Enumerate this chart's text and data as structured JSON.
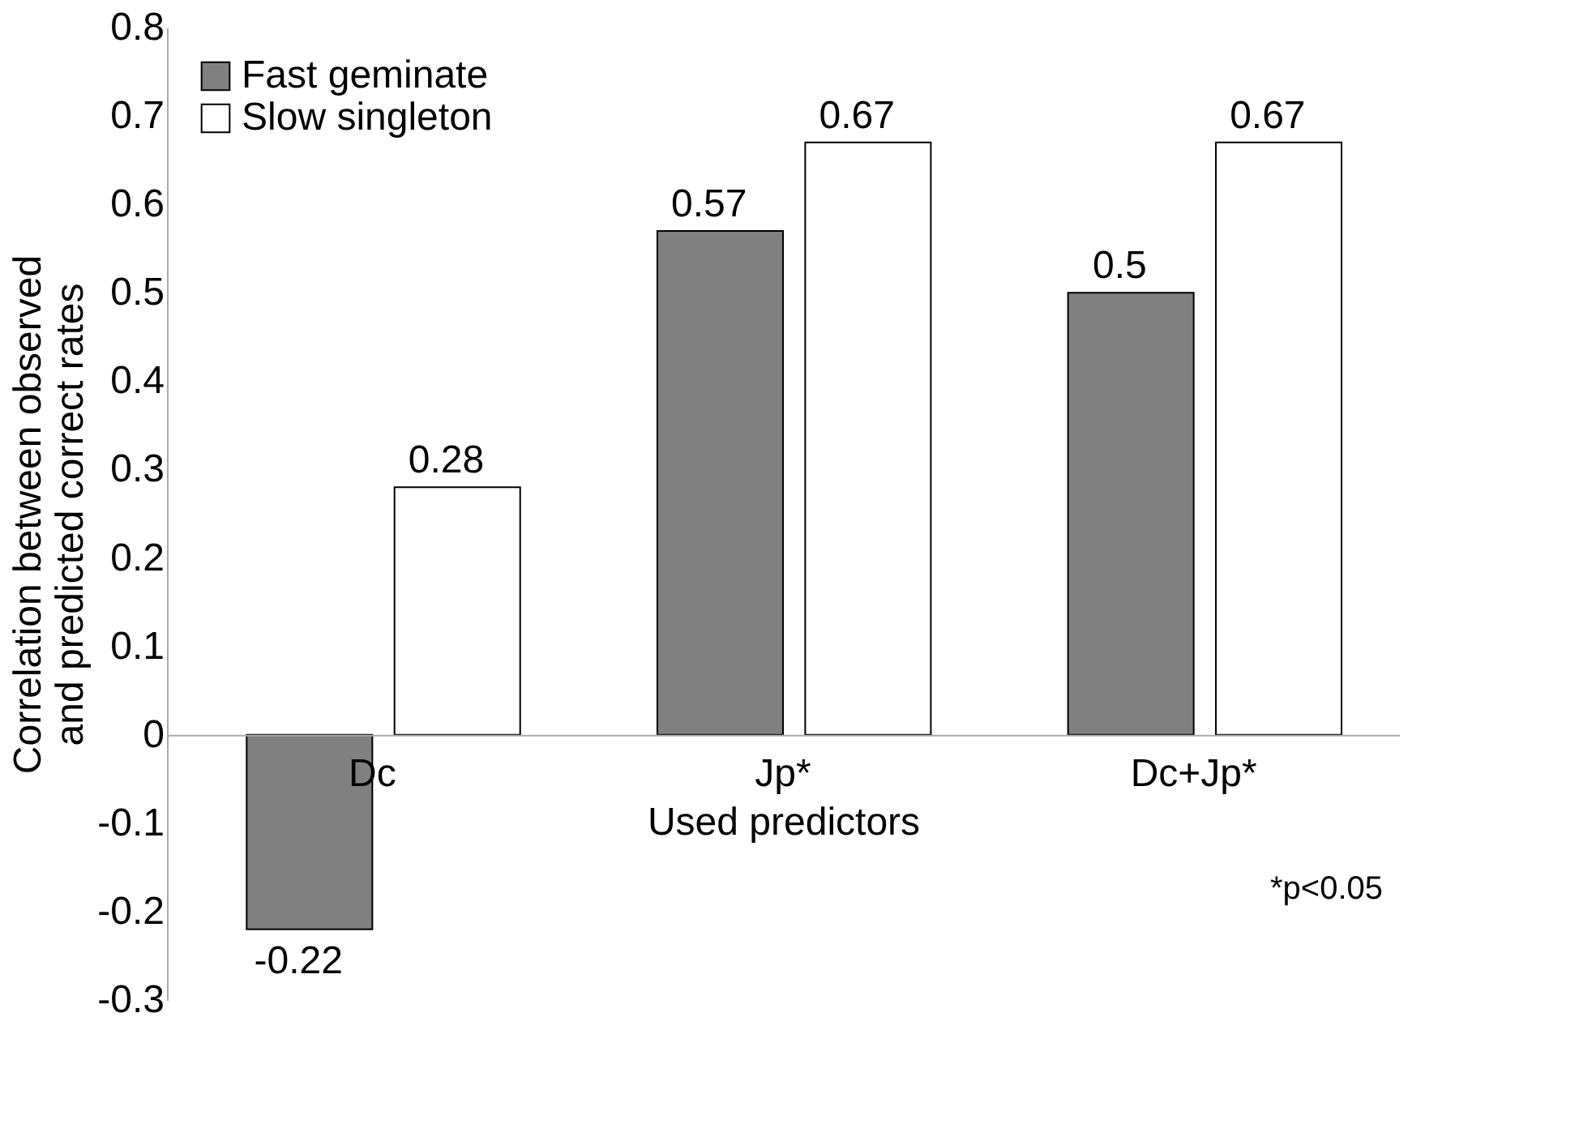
{
  "chart_data": {
    "type": "bar",
    "ylabel": "Correlation between observed\nand predicted correct rates",
    "xlabel": "Used predictors",
    "categories": [
      "Dc",
      "Jp*",
      "Dc+Jp*"
    ],
    "series": [
      {
        "name": "Fast geminate",
        "color": "#808080",
        "values": [
          -0.22,
          0.57,
          0.5
        ]
      },
      {
        "name": "Slow singleton",
        "color": "#ffffff",
        "values": [
          0.28,
          0.67,
          0.67
        ]
      }
    ],
    "ylim": [
      -0.3,
      0.8
    ],
    "yticks": [
      -0.3,
      -0.2,
      -0.1,
      0,
      0.1,
      0.2,
      0.3,
      0.4,
      0.5,
      0.6,
      0.7,
      0.8
    ],
    "data_labels": true,
    "grid": false,
    "legend": "top left",
    "annotations": [
      "*p<0.05"
    ]
  }
}
